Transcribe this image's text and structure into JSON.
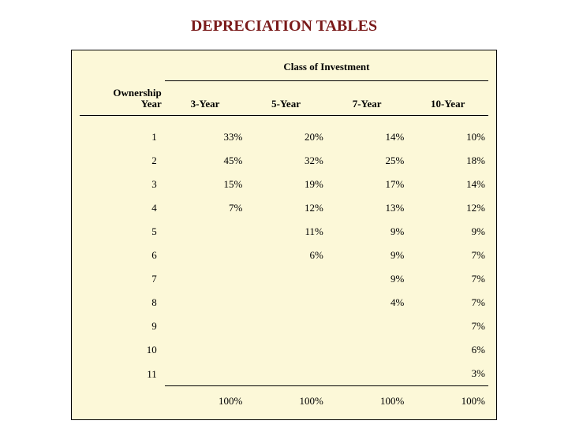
{
  "title": "DEPRECIATION TABLES",
  "super_header": "Class of Investment",
  "row_header": "Ownership\nYear",
  "columns": [
    "3-Year",
    "5-Year",
    "7-Year",
    "10-Year"
  ],
  "rows": [
    {
      "year": "1",
      "cells": [
        "33%",
        "20%",
        "14%",
        "10%"
      ]
    },
    {
      "year": "2",
      "cells": [
        "45%",
        "32%",
        "25%",
        "18%"
      ]
    },
    {
      "year": "3",
      "cells": [
        "15%",
        "19%",
        "17%",
        "14%"
      ]
    },
    {
      "year": "4",
      "cells": [
        "7%",
        "12%",
        "13%",
        "12%"
      ]
    },
    {
      "year": "5",
      "cells": [
        "",
        "11%",
        "9%",
        "9%"
      ]
    },
    {
      "year": "6",
      "cells": [
        "",
        "6%",
        "9%",
        "7%"
      ]
    },
    {
      "year": "7",
      "cells": [
        "",
        "",
        "9%",
        "7%"
      ]
    },
    {
      "year": "8",
      "cells": [
        "",
        "",
        "4%",
        "7%"
      ]
    },
    {
      "year": "9",
      "cells": [
        "",
        "",
        "",
        "7%"
      ]
    },
    {
      "year": "10",
      "cells": [
        "",
        "",
        "",
        "6%"
      ]
    },
    {
      "year": "11",
      "cells": [
        "",
        "",
        "",
        "3%"
      ]
    }
  ],
  "totals": [
    "100%",
    "100%",
    "100%",
    "100%"
  ],
  "colors": {
    "title": "#7a1a1a",
    "table_bg": "#fcf8d8",
    "border": "#000000",
    "page_bg": "#ffffff"
  }
}
